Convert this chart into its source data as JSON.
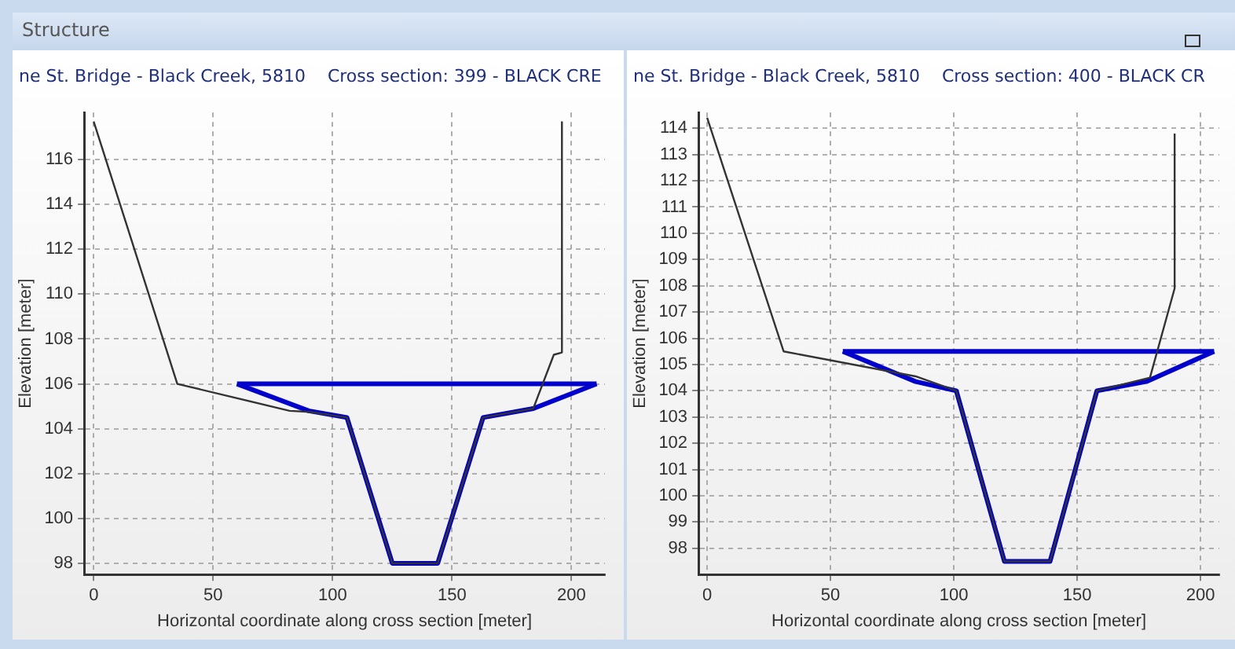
{
  "chart_data": [
    {
      "type": "line",
      "title": "ne St. Bridge - Black Creek, 5810    Cross section: 399 - BLACK CRE",
      "xlabel": "Horizontal coordinate along cross section [meter]",
      "ylabel": "Elevation [meter]",
      "annotations": [
        "Structure"
      ],
      "xlim": [
        -4,
        214
      ],
      "ylim": [
        97.5,
        118.1
      ],
      "xticks": [
        0,
        50,
        100,
        150,
        200
      ],
      "yticks": [
        98,
        100,
        102,
        104,
        106,
        108,
        110,
        112,
        114,
        116
      ],
      "grid": true,
      "legend": false,
      "marker": "none",
      "line_style": "solid",
      "series": [
        {
          "color": "#333333",
          "x": [
            0,
            35,
            82,
            90.5,
            106,
            125,
            144,
            163,
            184,
            192.6,
            196,
            196
          ],
          "values": [
            117.7,
            106,
            104.8,
            104.75,
            104.5,
            98,
            98,
            104.5,
            104.9,
            107.3,
            107.4,
            117.7
          ]
        },
        {
          "color": "#0000cc",
          "x": [
            60,
            90,
            106,
            125,
            144,
            163,
            184,
            210.5
          ],
          "values": [
            106,
            104.8,
            104.5,
            98,
            98,
            104.5,
            104.9,
            106
          ]
        },
        {
          "color": "#0000cc",
          "x": [
            60,
            210.5
          ],
          "values": [
            106,
            106
          ]
        }
      ]
    },
    {
      "type": "line",
      "title": "ne St. Bridge - Black Creek, 5810    Cross section: 400 - BLACK CR",
      "xlabel": "Horizontal coordinate along cross section [meter]",
      "ylabel": "Elevation [meter]",
      "xlim": [
        -3.5,
        207.6
      ],
      "ylim": [
        97,
        114.6
      ],
      "xticks": [
        0,
        50,
        100,
        150,
        200
      ],
      "yticks": [
        98,
        99,
        100,
        101,
        102,
        103,
        104,
        105,
        106,
        107,
        108,
        109,
        110,
        111,
        112,
        113,
        114
      ],
      "grid": true,
      "legend": false,
      "marker": "none",
      "line_style": "solid",
      "series": [
        {
          "color": "#333333",
          "x": [
            0,
            31,
            84.5,
            101,
            120.5,
            139,
            158,
            179.5,
            189.5,
            189.5
          ],
          "values": [
            114.4,
            105.5,
            104.55,
            104,
            97.5,
            97.5,
            104,
            104.5,
            107.9,
            113.8
          ]
        },
        {
          "color": "#0000cc",
          "x": [
            55,
            84.5,
            101,
            120.5,
            139,
            158,
            178,
            205.5
          ],
          "values": [
            105.5,
            104.35,
            104,
            97.5,
            97.5,
            104,
            104.35,
            105.5
          ]
        },
        {
          "color": "#0000cc",
          "x": [
            55,
            205.5
          ],
          "values": [
            105.5,
            105.5
          ]
        }
      ]
    }
  ]
}
